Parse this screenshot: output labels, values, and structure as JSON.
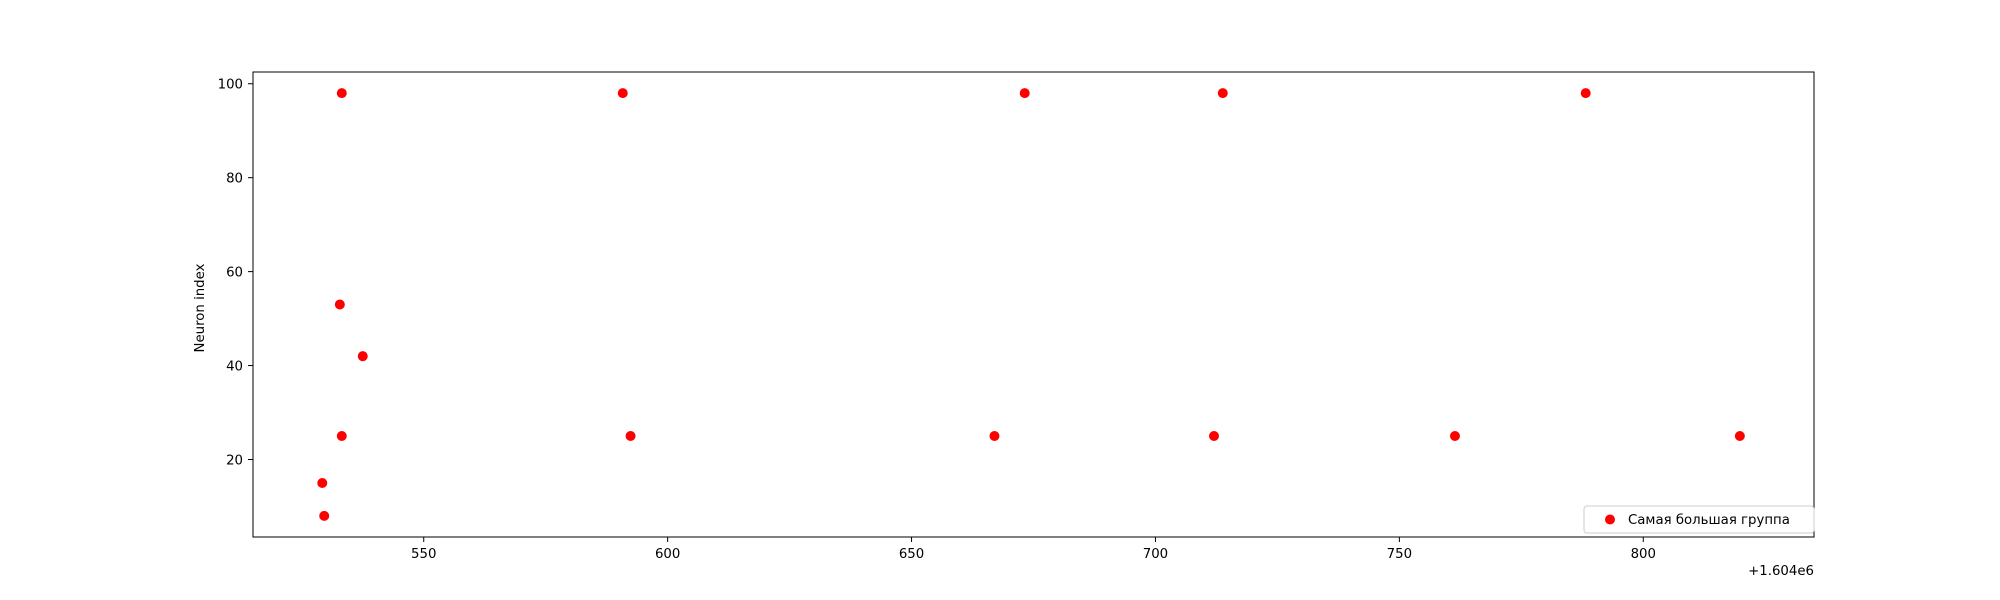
{
  "chart_data": {
    "type": "scatter",
    "title": "",
    "xlabel": "",
    "ylabel": "Neuron index",
    "x_offset_label": "+1.604e6",
    "xlim": [
      1604515,
      1604835
    ],
    "ylim": [
      3.5,
      102.5
    ],
    "x_ticks": [
      1604550,
      1604600,
      1604650,
      1604700,
      1604750,
      1604800
    ],
    "x_tick_labels": [
      "550",
      "600",
      "650",
      "700",
      "750",
      "800"
    ],
    "y_ticks": [
      20,
      40,
      60,
      80,
      100
    ],
    "y_tick_labels": [
      "20",
      "40",
      "60",
      "80",
      "100"
    ],
    "grid": false,
    "legend_position": "lower-right",
    "series": [
      {
        "name": "Самая большая группа",
        "color": "#ff0000",
        "marker": "circle",
        "points": [
          {
            "x": 1604529.2,
            "y": 15
          },
          {
            "x": 1604529.6,
            "y": 8
          },
          {
            "x": 1604532.8,
            "y": 53
          },
          {
            "x": 1604533.2,
            "y": 98
          },
          {
            "x": 1604533.2,
            "y": 25
          },
          {
            "x": 1604537.5,
            "y": 42
          },
          {
            "x": 1604590.8,
            "y": 98
          },
          {
            "x": 1604592.4,
            "y": 25
          },
          {
            "x": 1604667.0,
            "y": 25
          },
          {
            "x": 1604673.2,
            "y": 98
          },
          {
            "x": 1604712.0,
            "y": 25
          },
          {
            "x": 1604713.8,
            "y": 98
          },
          {
            "x": 1604761.4,
            "y": 25
          },
          {
            "x": 1604788.2,
            "y": 98
          },
          {
            "x": 1604819.8,
            "y": 25
          }
        ]
      }
    ]
  }
}
